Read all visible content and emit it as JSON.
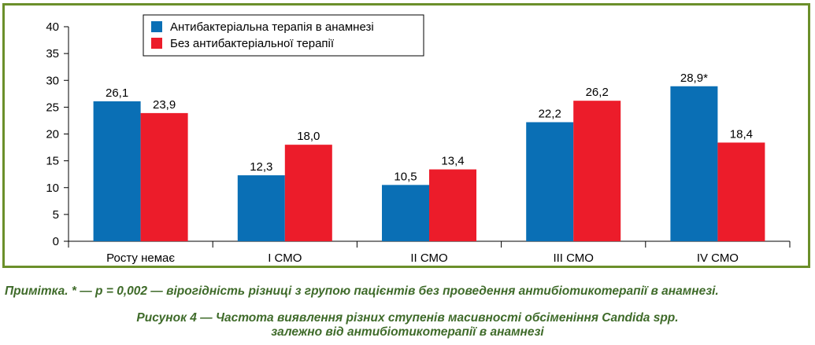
{
  "chart_data": {
    "type": "bar",
    "categories": [
      "Росту немає",
      "I СМО",
      "II СМО",
      "III СМО",
      "IV СМО"
    ],
    "series": [
      {
        "name": "Антибактеріальна терапія в анамнезі",
        "color": "#0a6fb5",
        "values": [
          26.1,
          12.3,
          10.5,
          22.2,
          28.9
        ],
        "labels": [
          "26,1",
          "12,3",
          "10,5",
          "22,2",
          "28,9*"
        ]
      },
      {
        "name": "Без антибактеріальної терапії",
        "color": "#ec1c2a",
        "values": [
          23.9,
          18.0,
          13.4,
          26.2,
          18.4
        ],
        "labels": [
          "23,9",
          "18,0",
          "13,4",
          "26,2",
          "18,4"
        ]
      }
    ],
    "ylim": [
      0,
      40
    ],
    "yticks": [
      "0",
      "5",
      "10",
      "15",
      "20",
      "25",
      "30",
      "35",
      "40"
    ],
    "grid": false,
    "legend_position": "top-left"
  },
  "frame_color": "#6b8f2a",
  "text_color": "#3f6b2a",
  "note": "Примітка. * — р = 0,002 — вірогідність різниці з групою пацієнтів без проведення антибіотикотерапії в анамнезі.",
  "caption": {
    "line1": "Рисунок 4 — Частота виявлення різних ступенів масивності обсіменіння Candida spp.",
    "line2": "залежно від антибіотикотерапії в анамнезі"
  }
}
